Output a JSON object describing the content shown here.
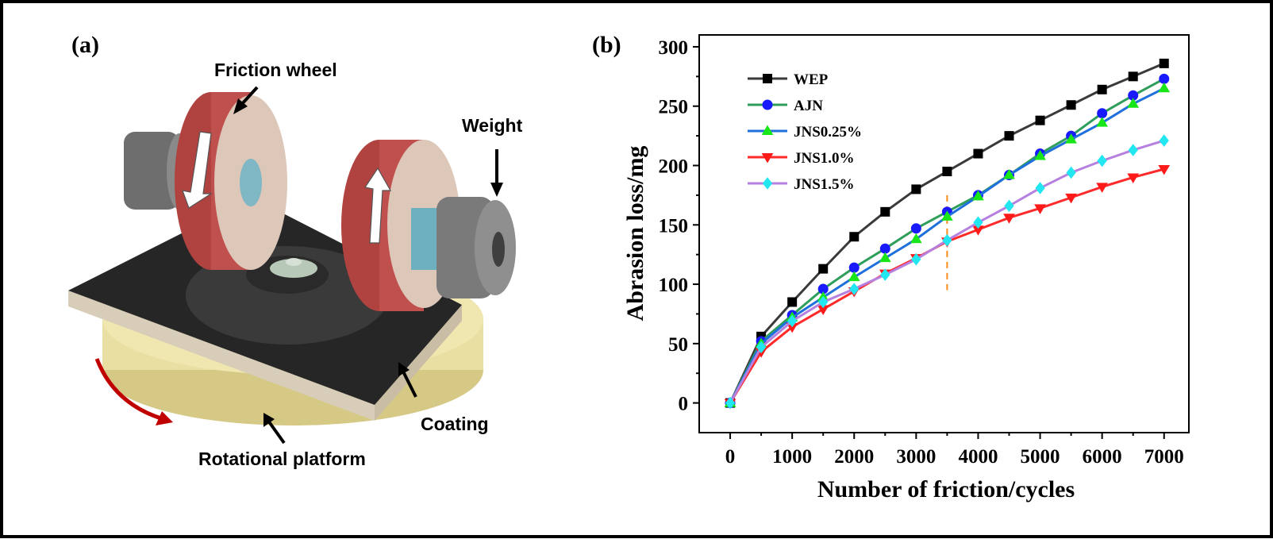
{
  "panels": {
    "a": {
      "label": "(a)",
      "callouts": {
        "friction_wheel": "Friction wheel",
        "weight": "Weight",
        "coating": "Coating",
        "rotational_platform": "Rotational platform"
      }
    },
    "b": {
      "label": "(b)"
    }
  },
  "colors": {
    "platform": "#e9dfa2",
    "coating": "#262626",
    "wheel_rim": "#c0504d",
    "wheel_face": "#dcc7b8",
    "weight": "#7f7f7f",
    "rotation_arrow": "#c00000",
    "marker_line": "#ff8c1a"
  },
  "chart_data": {
    "type": "line",
    "xlabel": "Number of friction/cycles",
    "ylabel": "Abrasion loss/mg",
    "x": [
      0,
      500,
      1000,
      1500,
      2000,
      2500,
      3000,
      3500,
      4000,
      4500,
      5000,
      5500,
      6000,
      6500,
      7000
    ],
    "xlim": [
      -500,
      7400
    ],
    "ylim": [
      -25,
      310
    ],
    "xticks": [
      0,
      1000,
      2000,
      3000,
      4000,
      5000,
      6000,
      7000
    ],
    "yticks": [
      0,
      50,
      100,
      150,
      200,
      250,
      300
    ],
    "grid": false,
    "legend_position": "top-left",
    "marker_line": {
      "x": 3500,
      "y_range": [
        95,
        175
      ]
    },
    "series": [
      {
        "name": "WEP",
        "color": "#3a3a3a",
        "marker_color": "#000000",
        "marker": "square",
        "values": [
          0,
          56,
          85,
          113,
          140,
          161,
          180,
          195,
          210,
          225,
          238,
          251,
          264,
          275,
          286
        ]
      },
      {
        "name": "AJN",
        "color": "#2e9e5b",
        "marker_color": "#1a1aff",
        "marker": "circle",
        "values": [
          0,
          52,
          74,
          96,
          114,
          130,
          147,
          161,
          175,
          192,
          210,
          225,
          244,
          259,
          273
        ]
      },
      {
        "name": "JNS0.25%",
        "color": "#1f6fdc",
        "marker_color": "#19e619",
        "marker": "triangle-up",
        "values": [
          0,
          50,
          72,
          89,
          106,
          122,
          138,
          157,
          174,
          192,
          208,
          222,
          236,
          252,
          265
        ]
      },
      {
        "name": "JNS1.0%",
        "color": "#ff2a2a",
        "marker_color": "#ff1a1a",
        "marker": "triangle-down",
        "values": [
          0,
          43,
          64,
          79,
          94,
          109,
          122,
          136,
          146,
          156,
          164,
          173,
          182,
          190,
          197
        ]
      },
      {
        "name": "JNS1.5%",
        "color": "#b580e0",
        "marker_color": "#22e6f0",
        "marker": "diamond",
        "values": [
          0,
          47,
          69,
          85,
          96,
          108,
          121,
          137,
          152,
          166,
          181,
          194,
          204,
          213,
          221
        ]
      }
    ]
  }
}
